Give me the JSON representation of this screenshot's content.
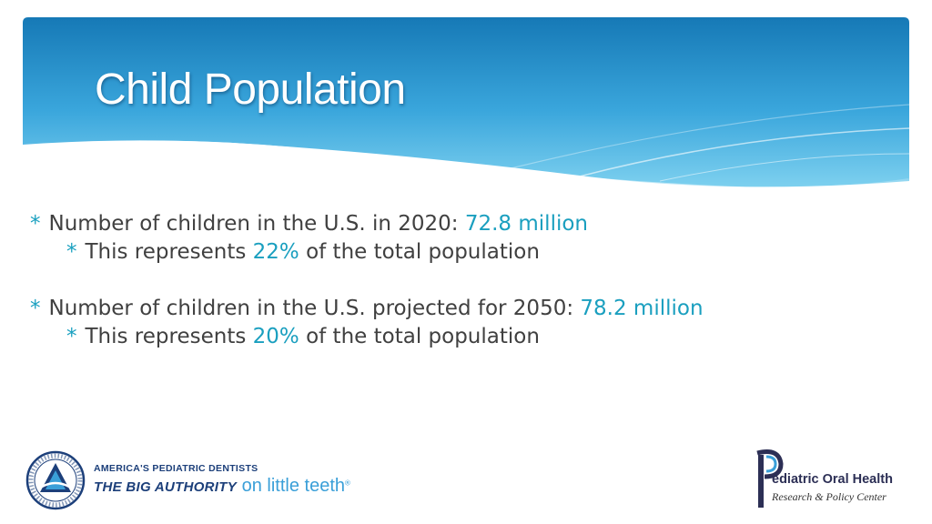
{
  "slide": {
    "title": "Child Population"
  },
  "bullets": [
    {
      "marker": "*",
      "text": "Number of children in the U.S. in 2020: ",
      "highlight": "72.8 million",
      "sub": {
        "marker": "*",
        "before": "This represents ",
        "highlight": "22%",
        "after": " of the total population"
      }
    },
    {
      "marker": "*",
      "text": "Number of children in the U.S. projected for 2050: ",
      "highlight": "78.2 million",
      "sub": {
        "marker": "*",
        "before": "This represents ",
        "highlight": "20%",
        "after": " of the total population"
      }
    }
  ],
  "logos": {
    "left": {
      "line1": "AMERICA'S PEDIATRIC DENTISTS",
      "line2_bold": "THE BIG AUTHORITY",
      "line2_light": " on little teeth",
      "mark": "®",
      "seal_name": "aapd-seal"
    },
    "right": {
      "line1": "ediatric Oral Health",
      "line2": "Research & Policy Center"
    }
  },
  "colors": {
    "header_dark": "#1a7db8",
    "header_light": "#5ec1ea",
    "accent": "#1a9fbf",
    "body_text": "#404040"
  }
}
